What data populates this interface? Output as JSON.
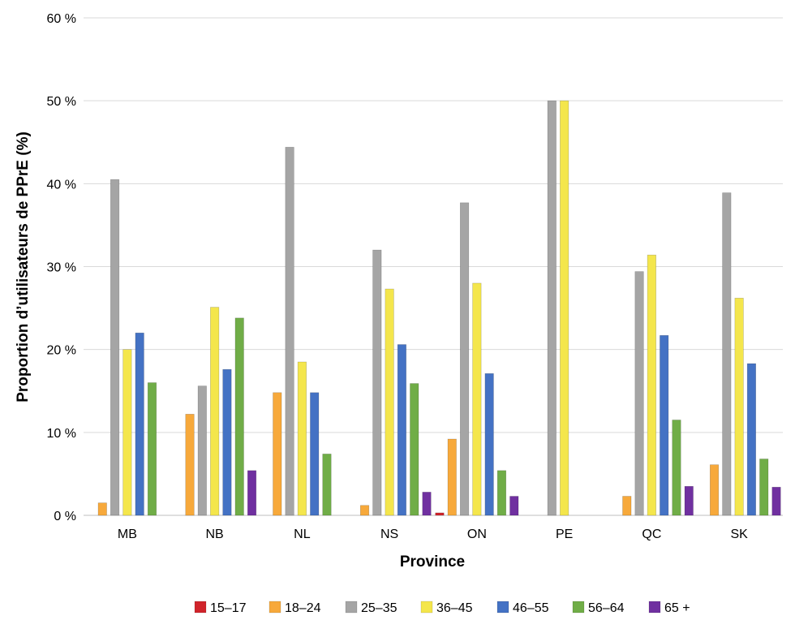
{
  "chart_data": {
    "type": "bar",
    "xlabel": "Province",
    "ylabel": "Proportion d’utilisateurs de PPrE (%)",
    "ylim": [
      0,
      60
    ],
    "yticks": [
      0,
      10,
      20,
      30,
      40,
      50,
      60
    ],
    "ytick_labels": [
      "0 %",
      "10 %",
      "20 %",
      "30 %",
      "40 %",
      "50 %",
      "60 %"
    ],
    "grid": true,
    "legend_position": "bottom",
    "categories": [
      "MB",
      "NB",
      "NL",
      "NS",
      "ON",
      "PE",
      "QC",
      "SK"
    ],
    "series": [
      {
        "name": "15–17",
        "color": "#d0242b",
        "values": [
          0,
          0,
          0,
          0,
          0.3,
          0,
          0,
          0
        ]
      },
      {
        "name": "18–24",
        "color": "#f7a93b",
        "values": [
          1.5,
          12.2,
          14.8,
          1.2,
          9.2,
          0,
          2.3,
          6.1
        ]
      },
      {
        "name": "25–35",
        "color": "#a5a5a5",
        "values": [
          40.5,
          15.6,
          44.4,
          32.0,
          37.7,
          50.0,
          29.4,
          38.9
        ]
      },
      {
        "name": "36–45",
        "color": "#f4e64c",
        "values": [
          20.0,
          25.1,
          18.5,
          27.3,
          28.0,
          50.0,
          31.4,
          26.2
        ]
      },
      {
        "name": "46–55",
        "color": "#4472c4",
        "values": [
          22.0,
          17.6,
          14.8,
          20.6,
          17.1,
          0,
          21.7,
          18.3
        ]
      },
      {
        "name": "56–64",
        "color": "#70ad47",
        "values": [
          16.0,
          23.8,
          7.4,
          15.9,
          5.4,
          0,
          11.5,
          6.8
        ]
      },
      {
        "name": "65 +",
        "color": "#7030a0",
        "values": [
          0,
          5.4,
          0,
          2.8,
          2.3,
          0,
          3.5,
          3.4
        ]
      }
    ]
  }
}
